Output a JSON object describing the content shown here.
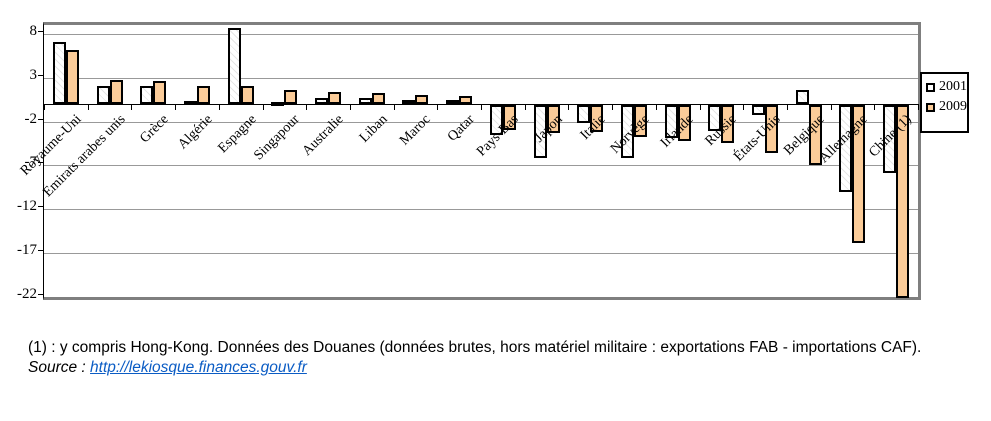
{
  "chart_data": {
    "type": "bar",
    "title": "",
    "xlabel": "",
    "ylabel": "",
    "categories": [
      "Royaume-Uni",
      "Émirats arabes unis",
      "Grèce",
      "Algérie",
      "Espagne",
      "Singapour",
      "Australie",
      "Liban",
      "Maroc",
      "Qatar",
      "Pays-Bas",
      "Japon",
      "Italie",
      "Norvège",
      "Irlande",
      "Russie",
      "États-Unis",
      "Belgique",
      "Allemagne",
      "Chine (1)"
    ],
    "series": [
      {
        "name": "2001",
        "color": "#ffffff",
        "values": [
          7.1,
          2.0,
          2.1,
          0.3,
          8.7,
          0.2,
          0.7,
          0.7,
          0.4,
          0.5,
          -3.4,
          -6.0,
          -2.1,
          -6.1,
          -3.8,
          -3.0,
          -1.1,
          1.6,
          -9.9,
          -7.8
        ]
      },
      {
        "name": "2009",
        "color": "#fbcc99",
        "values": [
          6.2,
          2.7,
          2.6,
          2.1,
          2.0,
          1.6,
          1.4,
          1.2,
          1.0,
          0.9,
          -2.8,
          -3.2,
          -3.1,
          -3.6,
          -4.1,
          -4.3,
          -5.5,
          -6.8,
          -15.7,
          -22.0
        ]
      }
    ],
    "yticks": [
      8,
      3,
      -2,
      -7,
      -12,
      -17,
      -22
    ],
    "ylim": [
      -22,
      9
    ],
    "grid": "horizontal",
    "legend_position": "right-outside"
  },
  "footer": {
    "note": "(1) : y compris Hong-Kong. Données des Douanes (données brutes, hors matériel militaire : exportations FAB - importations CAF).",
    "source_label": "Source : ",
    "source_link": "http://lekiosque.finances.gouv.fr"
  }
}
